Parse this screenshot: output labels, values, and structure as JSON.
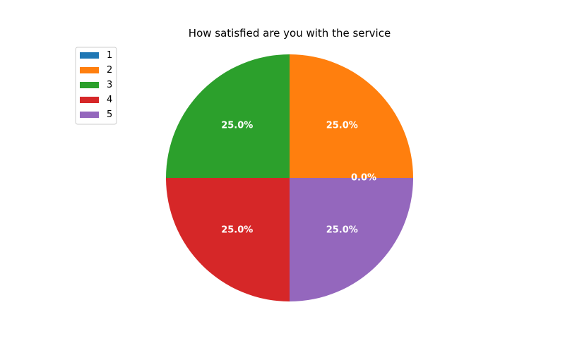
{
  "chart_data": {
    "type": "pie",
    "title": "How satisfied are you with the service",
    "labels": [
      "1",
      "2",
      "3",
      "4",
      "5"
    ],
    "values": [
      0,
      25,
      25,
      25,
      25
    ],
    "percent_labels": [
      "0.0%",
      "25.0%",
      "25.0%",
      "25.0%",
      "25.0%"
    ],
    "colors": [
      "#1f77b4",
      "#ff7f0e",
      "#2ca02c",
      "#d62728",
      "#9467bd"
    ],
    "start_angle_deg": 0,
    "direction": "counterclockwise",
    "legend_position": "upper-left"
  }
}
